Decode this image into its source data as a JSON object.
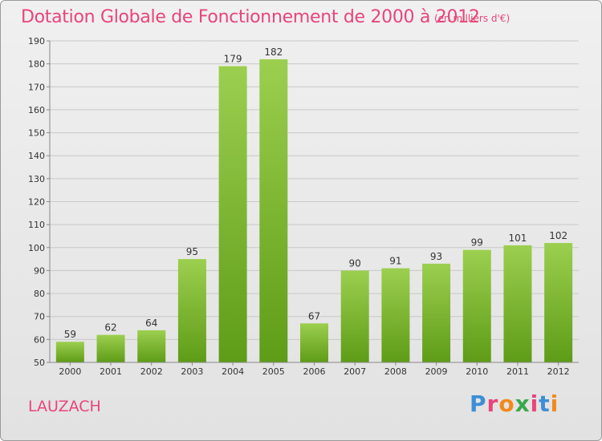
{
  "header": {
    "title": "Dotation Globale de Fonctionnement de 2000 à 2012",
    "subtitle": "(en milliers d'€)"
  },
  "footer": {
    "place": "LAUZACH",
    "brand": "Proxiti"
  },
  "colors": {
    "accent": "#e8457a",
    "bar_top": "#9ccf4f",
    "bar_bottom": "#5e9c17"
  },
  "chart_data": {
    "type": "bar",
    "categories": [
      "2000",
      "2001",
      "2002",
      "2003",
      "2004",
      "2005",
      "2006",
      "2007",
      "2008",
      "2009",
      "2010",
      "2011",
      "2012"
    ],
    "values": [
      59,
      62,
      64,
      95,
      179,
      182,
      67,
      90,
      91,
      93,
      99,
      101,
      102
    ],
    "title": "Dotation Globale de Fonctionnement de 2000 à 2012",
    "subtitle": "(en milliers d'€)",
    "xlabel": "",
    "ylabel": "",
    "ylim": [
      50,
      190
    ],
    "yticks": [
      50,
      60,
      70,
      80,
      90,
      100,
      110,
      120,
      130,
      140,
      150,
      160,
      170,
      180,
      190
    ],
    "grid": true,
    "data_labels": true
  }
}
